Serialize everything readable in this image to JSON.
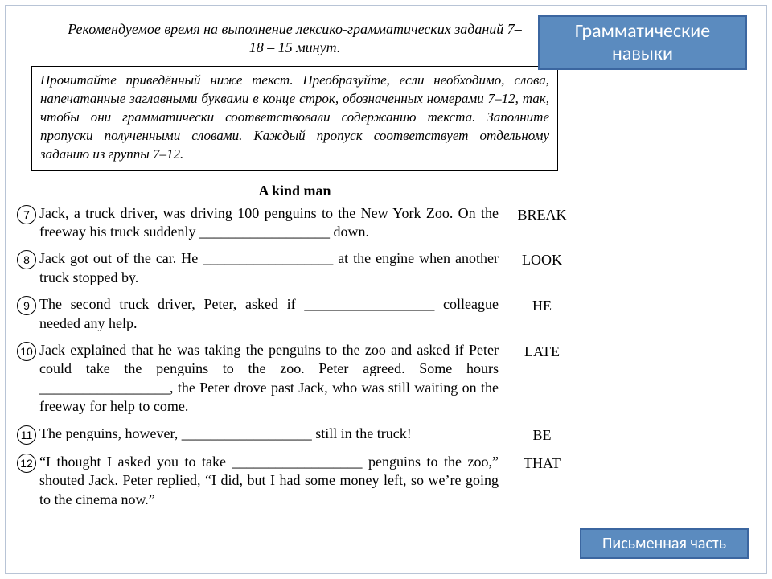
{
  "timeNote": "Рекомендуемое время на выполнение лексико-грамматических заданий 7–18 – 15 минут.",
  "instruction": "Прочитайте приведённый ниже текст. Преобразуйте, если необходимо, слова, напечатанные заглавными буквами в конце строк, обозначенных номерами 7–12, так, чтобы они грамматически соответствовали содержанию текста. Заполните пропуски полученными словами. Каждый пропуск соответствует отдельному заданию из группы 7–12.",
  "storyTitle": "A kind man",
  "tasks": [
    {
      "num": "7",
      "text": "Jack, a truck driver, was driving 100 penguins to the New York Zoo. On the freeway his truck suddenly __________________ down.",
      "word": "BREAK"
    },
    {
      "num": "8",
      "text": "Jack got out of the car. He __________________ at the engine when another truck stopped by.",
      "word": "LOOK"
    },
    {
      "num": "9",
      "text": "The second truck driver, Peter, asked if __________________ colleague needed any help.",
      "word": "HE"
    },
    {
      "num": "10",
      "text": "Jack explained that he was taking the penguins to the zoo and asked if Peter could take the penguins to the zoo. Peter agreed. Some hours __________________, the Peter drove past Jack, who was still waiting on the freeway for help to come.",
      "word": "LATE"
    },
    {
      "num": "11",
      "text": "The penguins, however, __________________ still in the truck!",
      "word": "BE"
    },
    {
      "num": "12",
      "text": "“I thought I asked you to take __________________ penguins to the zoo,” shouted Jack. Peter replied, “I did, but I had some money left, so we’re going to the cinema now.”",
      "word": "THAT"
    }
  ],
  "badgeTop": {
    "line1": "Грамматические",
    "line2": "навыки"
  },
  "badgeBottom": "Письменная часть"
}
